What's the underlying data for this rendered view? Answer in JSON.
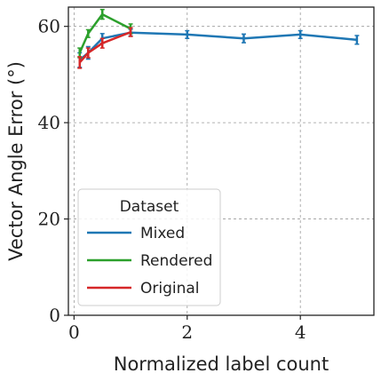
{
  "chart_data": {
    "type": "line",
    "xlabel": "Normalized label count",
    "ylabel": "Vector Angle Error (°)",
    "xlim": [
      -0.1,
      5.3
    ],
    "ylim": [
      0,
      64
    ],
    "xticks": [
      0,
      2,
      4
    ],
    "yticks": [
      0,
      20,
      40,
      60
    ],
    "grid": true,
    "legend": {
      "title": "Dataset",
      "position": "lower-left"
    },
    "series": [
      {
        "name": "Mixed",
        "color": "#1f77b4",
        "x": [
          0.1,
          0.25,
          0.5,
          1.0,
          2.0,
          3.0,
          4.0,
          5.0
        ],
        "y": [
          53.0,
          54.5,
          57.5,
          58.7,
          58.3,
          57.5,
          58.3,
          57.2
        ],
        "err": [
          1.5,
          1.3,
          1.0,
          0.7,
          0.8,
          0.9,
          0.8,
          0.9
        ]
      },
      {
        "name": "Rendered",
        "color": "#2ca02c",
        "x": [
          0.1,
          0.25,
          0.5,
          1.0
        ],
        "y": [
          54.5,
          58.5,
          62.5,
          59.5
        ],
        "err": [
          1.0,
          0.8,
          1.0,
          1.0
        ]
      },
      {
        "name": "Original",
        "color": "#d62728",
        "x": [
          0.1,
          0.25,
          0.5,
          1.0
        ],
        "y": [
          52.5,
          54.5,
          56.5,
          58.8
        ],
        "err": [
          1.2,
          1.0,
          1.0,
          0.9
        ]
      }
    ]
  }
}
